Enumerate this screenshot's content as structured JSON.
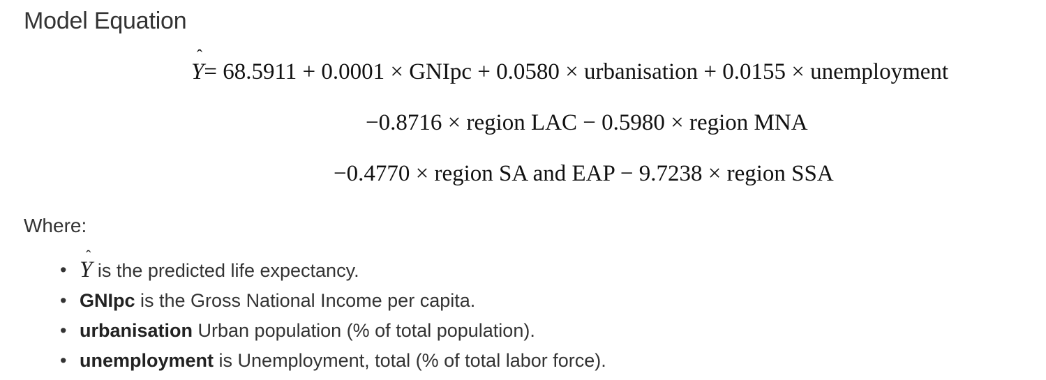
{
  "heading": "Model Equation",
  "equation": {
    "response_symbol": "Y",
    "hat": "ˆ",
    "line1": "= 68.5911 + 0.0001 × GNIpc + 0.0580 × urbanisation  + 0.0155 × unemployment",
    "line2": "−0.8716 × region LAC − 0.5980 × region MNA",
    "line3": "−0.4770 × region SA and EAP − 9.7238 × region SSA"
  },
  "where_label": "Where:",
  "definitions": [
    {
      "term": "Y",
      "text": " is the predicted life expectancy."
    },
    {
      "term": "GNIpc",
      "text": " is the Gross National Income per capita."
    },
    {
      "term": "urbanisation",
      "text": " Urban population (% of total population)."
    },
    {
      "term": "unemployment",
      "text": " is Unemployment, total (% of total labor force)."
    }
  ],
  "bullet": "•"
}
